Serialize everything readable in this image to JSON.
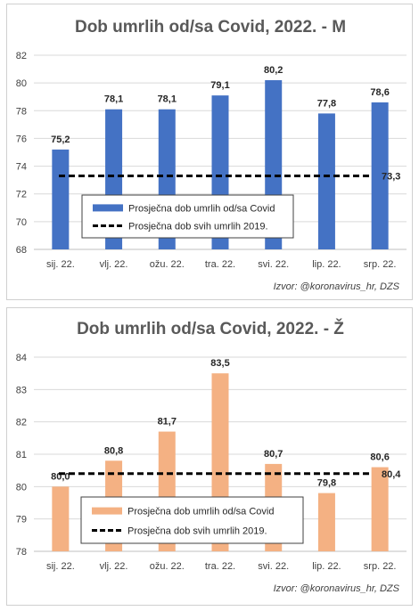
{
  "chart_data": [
    {
      "type": "bar",
      "title": "Dob umrlih od/sa Covid, 2022. - M",
      "categories": [
        "sij. 22.",
        "vlj. 22.",
        "ožu. 22.",
        "tra. 22.",
        "svi. 22.",
        "lip. 22.",
        "srp. 22."
      ],
      "series": [
        {
          "name": "Prosječna dob umrlih od/sa Covid",
          "values": [
            75.2,
            78.1,
            78.1,
            79.1,
            80.2,
            77.8,
            78.6
          ],
          "color": "#4472c4"
        }
      ],
      "data_labels": [
        "75,2",
        "78,1",
        "78,1",
        "79,1",
        "80,2",
        "77,8",
        "78,6"
      ],
      "reference_line": {
        "name": "Prosječna dob svih umrlih 2019.",
        "value": 73.3,
        "label": "73,3",
        "color": "#000000"
      },
      "ylim": [
        68,
        82
      ],
      "yticks": [
        68,
        70,
        72,
        74,
        76,
        78,
        80,
        82
      ],
      "grid": true,
      "legend_position": "bottom-center",
      "source": "Izvor: @koronavirus_hr, DZS"
    },
    {
      "type": "bar",
      "title": "Dob umrlih od/sa Covid, 2022. - Ž",
      "categories": [
        "sij. 22.",
        "vlj. 22.",
        "ožu. 22.",
        "tra. 22.",
        "svi. 22.",
        "lip. 22.",
        "srp. 22."
      ],
      "series": [
        {
          "name": "Prosječna dob umrlih od/sa Covid",
          "values": [
            80.0,
            80.8,
            81.7,
            83.5,
            80.7,
            79.8,
            80.6
          ],
          "color": "#f4b183"
        }
      ],
      "data_labels": [
        "80,0",
        "80,8",
        "81,7",
        "83,5",
        "80,7",
        "79,8",
        "80,6"
      ],
      "reference_line": {
        "name": "Prosječna dob svih umrlih 2019.",
        "value": 80.4,
        "label": "80,4",
        "color": "#000000"
      },
      "ylim": [
        78,
        84
      ],
      "yticks": [
        78,
        79,
        80,
        81,
        82,
        83,
        84
      ],
      "grid": true,
      "legend_position": "bottom-center",
      "source": "Izvor: @koronavirus_hr, DZS"
    }
  ]
}
